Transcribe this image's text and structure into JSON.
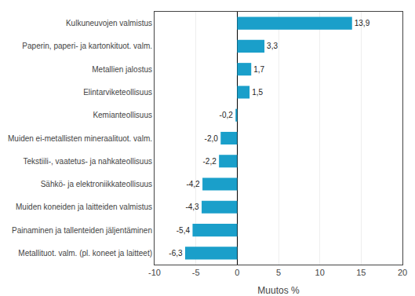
{
  "chart_data": {
    "type": "bar",
    "orientation": "horizontal",
    "categories": [
      "Metallituot. valm. (pl. koneet ja laitteet)",
      "Painaminen ja tallenteiden jäljentäminen",
      "Muiden koneiden ja laitteiden valmistus",
      "Sähkö- ja elektroniikkateollisuus",
      "Tekstiili-, vaatetus- ja nahkateollisuus",
      "Muiden ei-metallisten mineraalituot. valm.",
      "Kemianteollisuus",
      "Elintarviketeollisuus",
      "Metallien jalostus",
      "Paperin, paperi- ja kartonkituot. valm.",
      "Kulkuneuvojen valmistus"
    ],
    "values": [
      -6.3,
      -5.4,
      -4.3,
      -4.2,
      -2.2,
      -2.0,
      -0.2,
      1.5,
      1.7,
      3.3,
      13.9
    ],
    "value_labels": [
      "-6,3",
      "-5,4",
      "-4,3",
      "-4,2",
      "-2,2",
      "-2,0",
      "-0,2",
      "1,5",
      "1,7",
      "3,3",
      "13,9"
    ],
    "data_labels": true,
    "color": "#1a9fca",
    "xlabel": "Muutos %",
    "xlim": [
      -10,
      20
    ],
    "xticks": [
      -10,
      -5,
      0,
      5,
      10,
      15,
      20
    ],
    "grid": true
  }
}
